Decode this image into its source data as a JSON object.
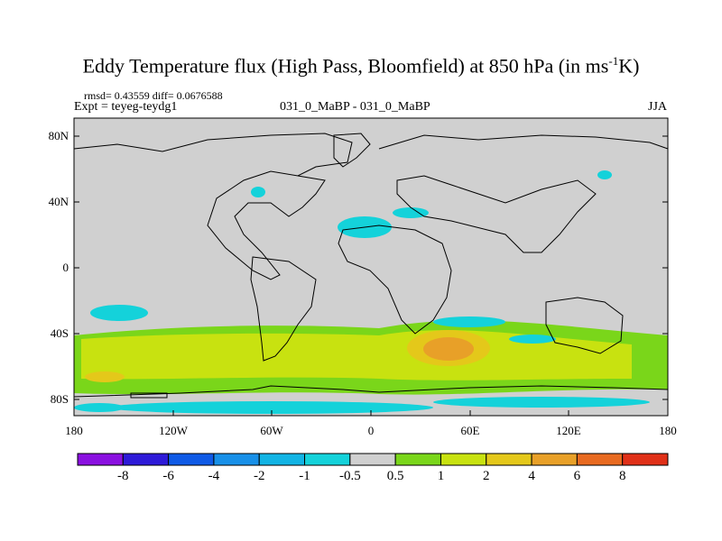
{
  "title_main": "Eddy Temperature flux (High Pass, Bloomfield) at 850 hPa (in ms",
  "title_sup": "-1",
  "title_end": "K)",
  "stats_line": "rmsd= 0.43559 diff= 0.0676588",
  "experiment_label": "Expt = teyeg-teydg1",
  "center_label": "031_0_MaBP - 031_0_MaBP",
  "season_label": "JJA",
  "lat_ticks": [
    "80N",
    "40N",
    "0",
    "40S",
    "80S"
  ],
  "lon_ticks": [
    "180",
    "120W",
    "60W",
    "0",
    "60E",
    "120E",
    "180"
  ],
  "colorbar": {
    "labels": [
      "-8",
      "-6",
      "-4",
      "-2",
      "-1",
      "-0.5",
      "0.5",
      "1",
      "2",
      "4",
      "6",
      "8"
    ],
    "colors": [
      "#8a10e0",
      "#2e1ad8",
      "#0f5ae6",
      "#1890e8",
      "#12b4e4",
      "#14d2da",
      "#d0d0d0",
      "#7ad61a",
      "#c8e210",
      "#e4c81a",
      "#e8a028",
      "#e86a20",
      "#e03018"
    ]
  },
  "colors": {
    "land_background": "#d0d0d0",
    "coastline": "#000000",
    "negative_anomaly": "#14d2da",
    "positive_weak": "#7ad61a",
    "positive_mid": "#c8e210",
    "positive_high": "#e4c81a",
    "positive_peak": "#e8a028"
  }
}
